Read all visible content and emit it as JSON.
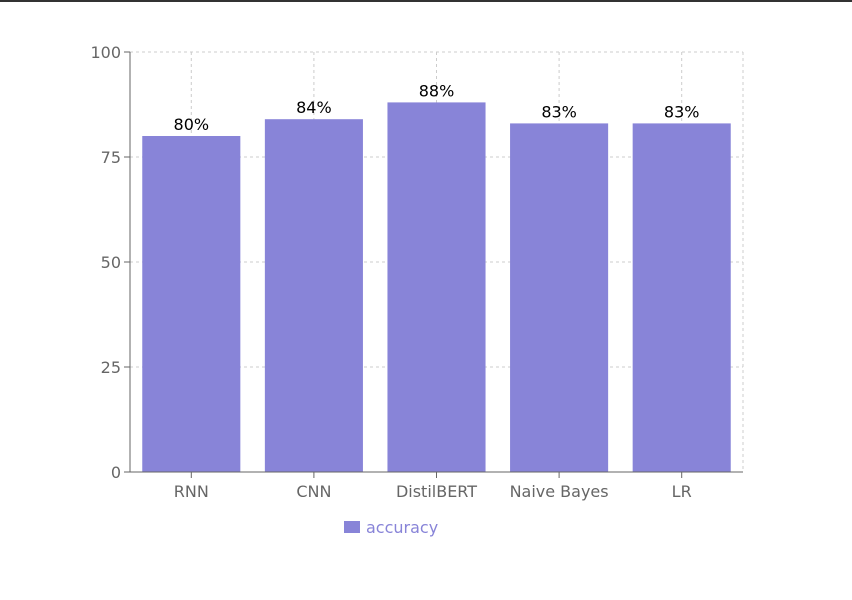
{
  "chart_data": {
    "type": "bar",
    "categories": [
      "RNN",
      "CNN",
      "DistilBERT",
      "Naive Bayes",
      "LR"
    ],
    "series": [
      {
        "name": "accuracy",
        "values": [
          80,
          84,
          88,
          83,
          83
        ],
        "color": "#8884d8"
      }
    ],
    "data_labels": [
      "80%",
      "84%",
      "88%",
      "83%",
      "83%"
    ],
    "yticks": [
      0,
      25,
      50,
      75,
      100
    ],
    "ylim": [
      0,
      100
    ],
    "grid": true,
    "legend_position": "bottom",
    "title": "",
    "xlabel": "",
    "ylabel": ""
  }
}
